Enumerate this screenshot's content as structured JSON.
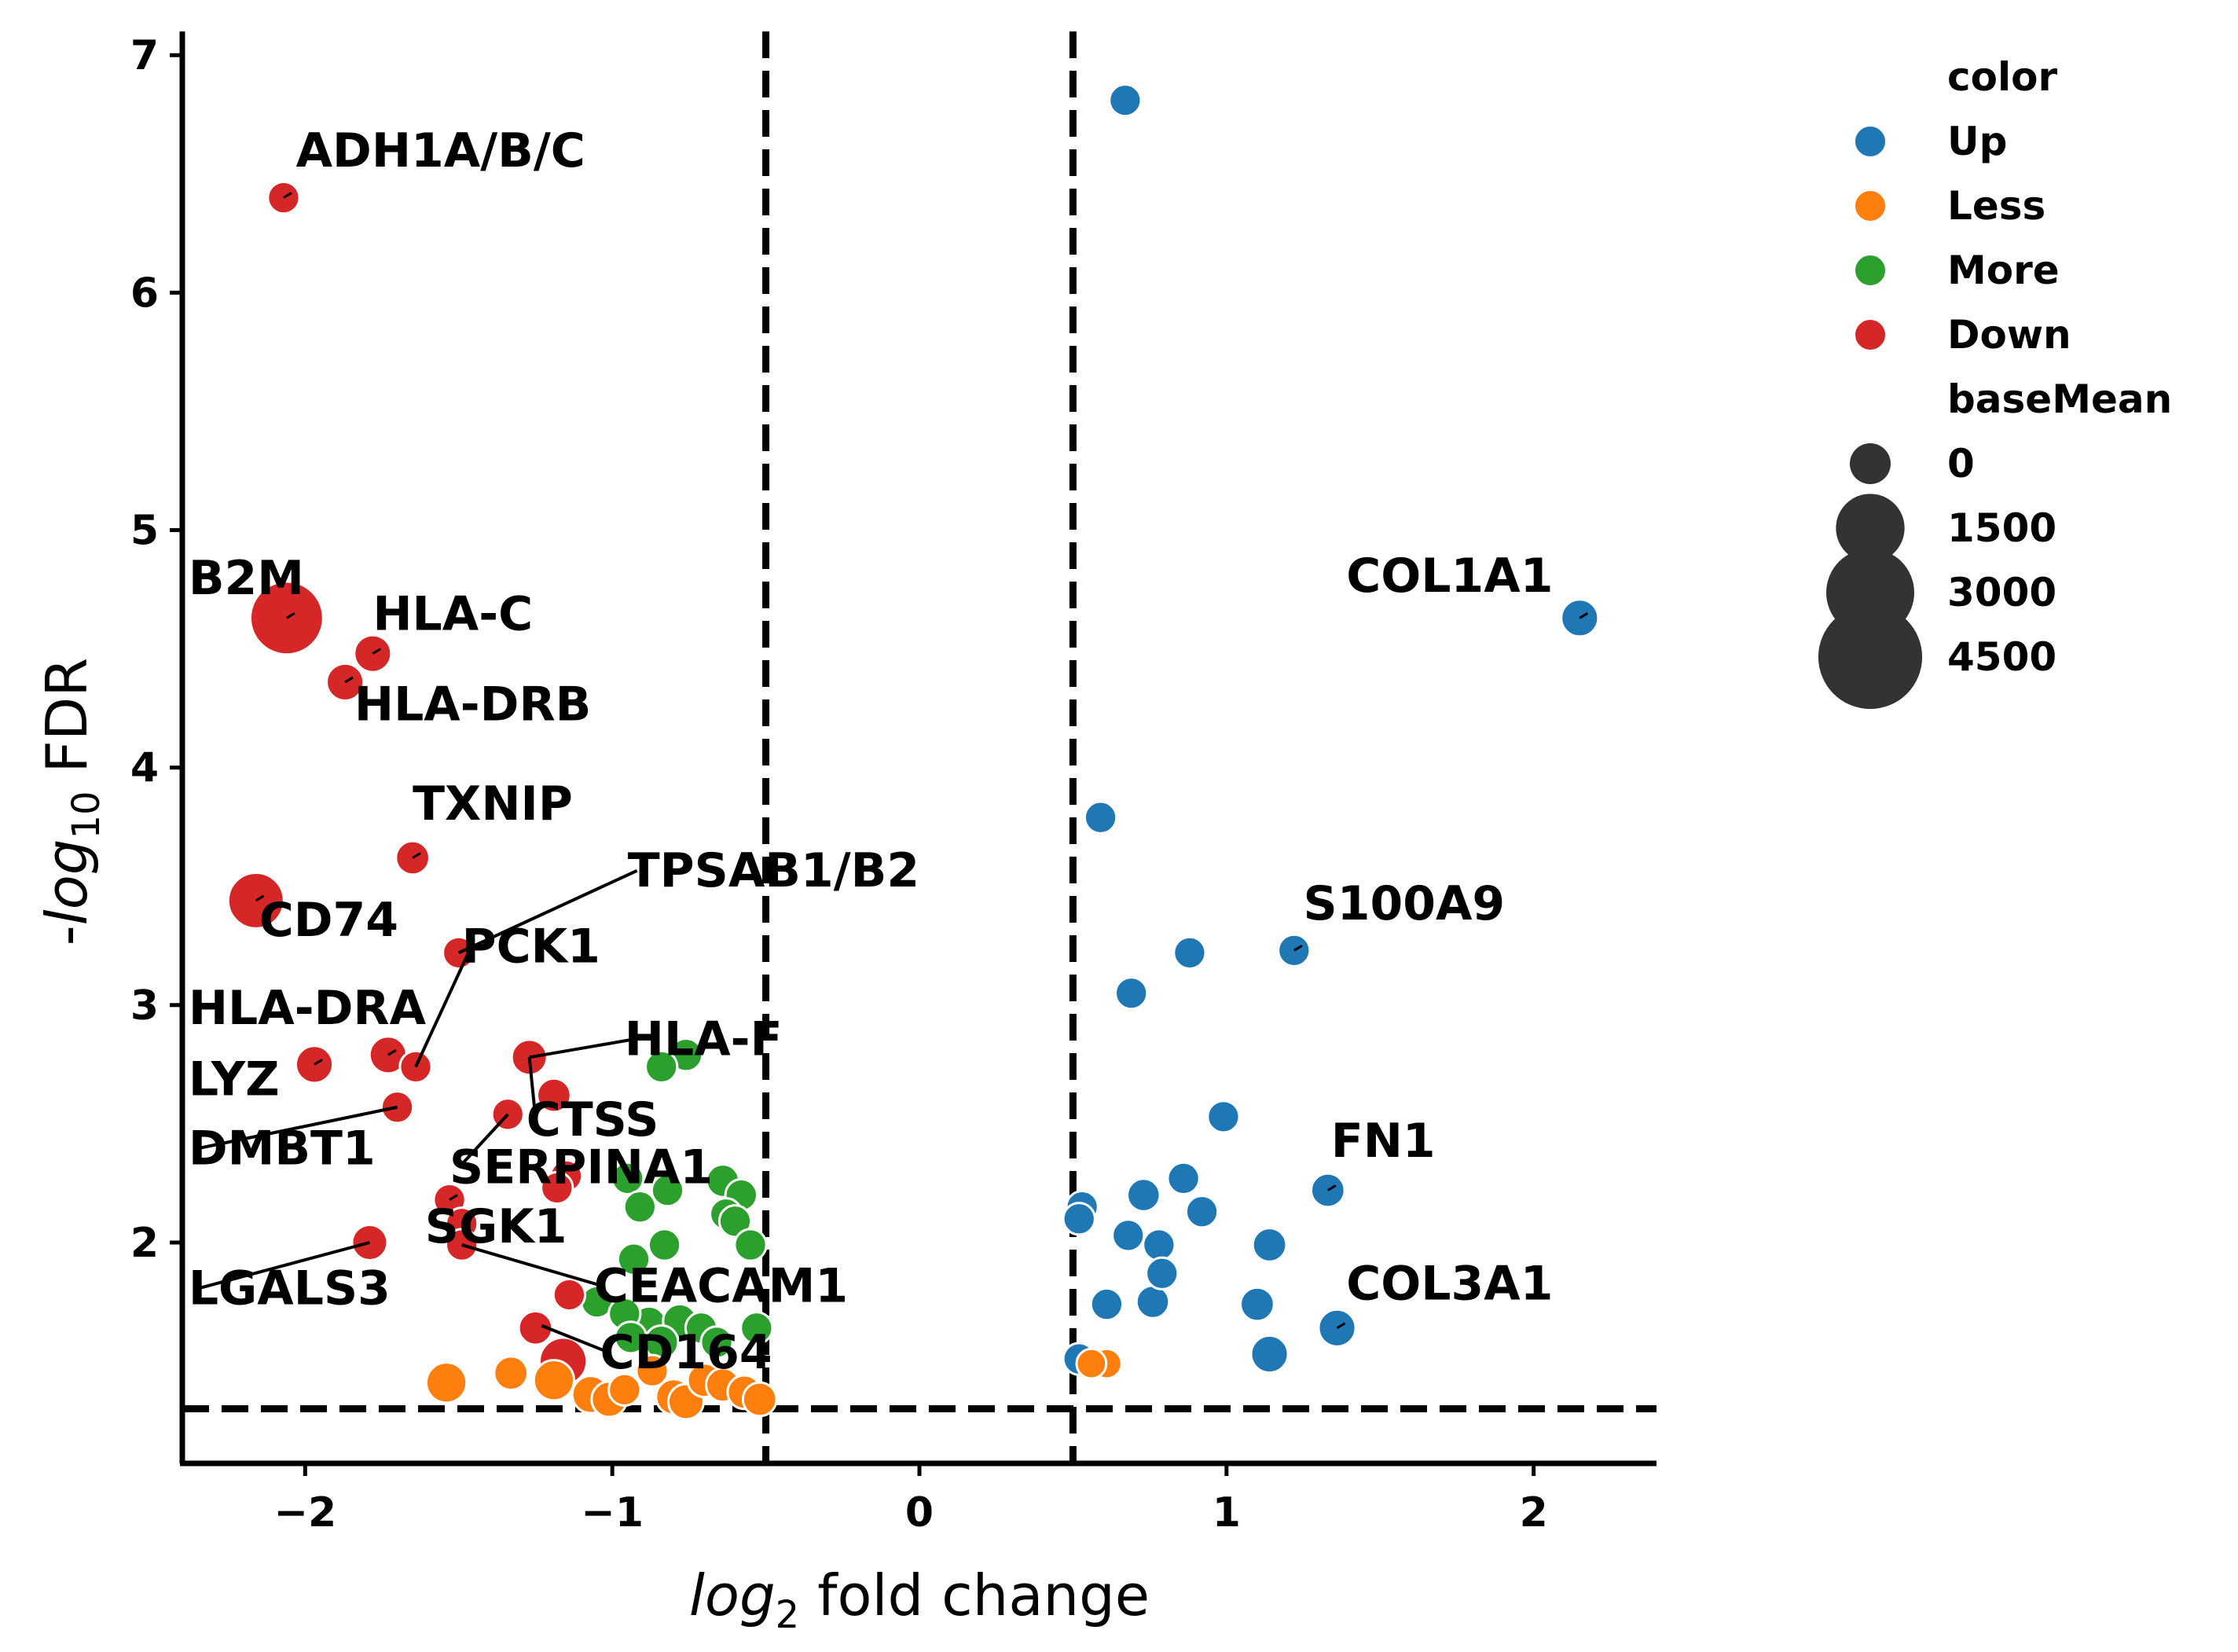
{
  "chart_data": {
    "type": "scatter",
    "title": "",
    "xlabel": {
      "italic": "log",
      "sub": "2",
      "rest": " fold change"
    },
    "ylabel": {
      "prefix": "-",
      "italic": "log",
      "sub": "10",
      "rest": " FDR"
    },
    "xlim": [
      -2.4,
      2.4
    ],
    "ylim": [
      1.07,
      7.1
    ],
    "xticks": [
      -2,
      -1,
      0,
      1,
      2
    ],
    "xtick_labels": [
      "−2",
      "−1",
      "0",
      "1",
      "2"
    ],
    "yticks": [
      2,
      3,
      4,
      5,
      6,
      7
    ],
    "ytick_labels": [
      "2",
      "3",
      "4",
      "5",
      "6",
      "7"
    ],
    "grid": false,
    "thresholds": {
      "vertical": [
        -0.5,
        0.5
      ],
      "horizontal": 1.3
    },
    "colors": {
      "Up": "#1f77b4",
      "Less": "#ff7f0e",
      "More": "#2ca02c",
      "Down": "#d62728"
    },
    "legend": {
      "placement": "outside-right",
      "color_title": "color",
      "color_entries": [
        "Up",
        "Less",
        "More",
        "Down"
      ],
      "size_title": "baseMean",
      "size_entries": [
        {
          "label": "0",
          "value": 0
        },
        {
          "label": "1500",
          "value": 1500
        },
        {
          "label": "3000",
          "value": 3000
        },
        {
          "label": "4500",
          "value": 4500
        }
      ]
    },
    "points": [
      {
        "x": 0.67,
        "y": 6.81,
        "group": "Up",
        "size": 300
      },
      {
        "x": 2.15,
        "y": 4.63,
        "group": "Up",
        "size": 600
      },
      {
        "x": 0.59,
        "y": 3.79,
        "group": "Up",
        "size": 300
      },
      {
        "x": 0.88,
        "y": 3.22,
        "group": "Up",
        "size": 300
      },
      {
        "x": 1.22,
        "y": 3.23,
        "group": "Up",
        "size": 300
      },
      {
        "x": 0.69,
        "y": 3.05,
        "group": "Up",
        "size": 300
      },
      {
        "x": 0.99,
        "y": 2.53,
        "group": "Up",
        "size": 300
      },
      {
        "x": 0.86,
        "y": 2.27,
        "group": "Up",
        "size": 300
      },
      {
        "x": 1.33,
        "y": 2.22,
        "group": "Up",
        "size": 400
      },
      {
        "x": 0.73,
        "y": 2.2,
        "group": "Up",
        "size": 350
      },
      {
        "x": 0.53,
        "y": 2.15,
        "group": "Up",
        "size": 300
      },
      {
        "x": 0.92,
        "y": 2.13,
        "group": "Up",
        "size": 300
      },
      {
        "x": 0.52,
        "y": 2.1,
        "group": "Up",
        "size": 300
      },
      {
        "x": 0.68,
        "y": 2.03,
        "group": "Up",
        "size": 300
      },
      {
        "x": 0.78,
        "y": 1.99,
        "group": "Up",
        "size": 300
      },
      {
        "x": 1.14,
        "y": 1.99,
        "group": "Up",
        "size": 400
      },
      {
        "x": 0.79,
        "y": 1.87,
        "group": "Up",
        "size": 300
      },
      {
        "x": 0.61,
        "y": 1.74,
        "group": "Up",
        "size": 300
      },
      {
        "x": 0.76,
        "y": 1.75,
        "group": "Up",
        "size": 350
      },
      {
        "x": 1.1,
        "y": 1.74,
        "group": "Up",
        "size": 400
      },
      {
        "x": 1.36,
        "y": 1.64,
        "group": "Up",
        "size": 600
      },
      {
        "x": 1.14,
        "y": 1.53,
        "group": "Up",
        "size": 600
      },
      {
        "x": 0.52,
        "y": 1.51,
        "group": "Up",
        "size": 300
      },
      {
        "x": 0.61,
        "y": 1.49,
        "group": "Less",
        "size": 200
      },
      {
        "x": 0.56,
        "y": 1.49,
        "group": "Less",
        "size": 200
      },
      {
        "x": -1.54,
        "y": 1.41,
        "group": "Less",
        "size": 800
      },
      {
        "x": -1.33,
        "y": 1.45,
        "group": "Less",
        "size": 400
      },
      {
        "x": -1.19,
        "y": 1.42,
        "group": "Less",
        "size": 800
      },
      {
        "x": -1.07,
        "y": 1.36,
        "group": "Less",
        "size": 600
      },
      {
        "x": -1.01,
        "y": 1.34,
        "group": "Less",
        "size": 500
      },
      {
        "x": -0.96,
        "y": 1.38,
        "group": "Less",
        "size": 300
      },
      {
        "x": -0.8,
        "y": 1.35,
        "group": "Less",
        "size": 500
      },
      {
        "x": -0.76,
        "y": 1.33,
        "group": "Less",
        "size": 500
      },
      {
        "x": -0.7,
        "y": 1.42,
        "group": "Less",
        "size": 400
      },
      {
        "x": -0.64,
        "y": 1.4,
        "group": "Less",
        "size": 400
      },
      {
        "x": -0.57,
        "y": 1.37,
        "group": "Less",
        "size": 400
      },
      {
        "x": -0.52,
        "y": 1.34,
        "group": "Less",
        "size": 400
      },
      {
        "x": -0.87,
        "y": 1.46,
        "group": "Less",
        "size": 300
      },
      {
        "x": -0.84,
        "y": 2.74,
        "group": "More",
        "size": 300
      },
      {
        "x": -0.76,
        "y": 2.79,
        "group": "More",
        "size": 350
      },
      {
        "x": -0.95,
        "y": 2.27,
        "group": "More",
        "size": 300
      },
      {
        "x": -0.82,
        "y": 2.22,
        "group": "More",
        "size": 300
      },
      {
        "x": -0.64,
        "y": 2.26,
        "group": "More",
        "size": 350
      },
      {
        "x": -0.58,
        "y": 2.2,
        "group": "More",
        "size": 300
      },
      {
        "x": -0.91,
        "y": 2.15,
        "group": "More",
        "size": 300
      },
      {
        "x": -0.63,
        "y": 2.12,
        "group": "More",
        "size": 300
      },
      {
        "x": -0.6,
        "y": 2.09,
        "group": "More",
        "size": 300
      },
      {
        "x": -0.83,
        "y": 1.99,
        "group": "More",
        "size": 300
      },
      {
        "x": -0.55,
        "y": 1.99,
        "group": "More",
        "size": 300
      },
      {
        "x": -0.93,
        "y": 1.93,
        "group": "More",
        "size": 300
      },
      {
        "x": -1.05,
        "y": 1.75,
        "group": "More",
        "size": 300
      },
      {
        "x": -0.96,
        "y": 1.7,
        "group": "More",
        "size": 300
      },
      {
        "x": -0.88,
        "y": 1.66,
        "group": "More",
        "size": 400
      },
      {
        "x": -0.78,
        "y": 1.67,
        "group": "More",
        "size": 400
      },
      {
        "x": -0.71,
        "y": 1.64,
        "group": "More",
        "size": 300
      },
      {
        "x": -0.53,
        "y": 1.64,
        "group": "More",
        "size": 300
      },
      {
        "x": -0.94,
        "y": 1.6,
        "group": "More",
        "size": 300
      },
      {
        "x": -0.84,
        "y": 1.58,
        "group": "More",
        "size": 400
      },
      {
        "x": -0.66,
        "y": 1.58,
        "group": "More",
        "size": 300
      },
      {
        "x": -2.07,
        "y": 6.4,
        "group": "Down",
        "size": 300
      },
      {
        "x": -2.06,
        "y": 4.63,
        "group": "Down",
        "size": 3800
      },
      {
        "x": -1.78,
        "y": 4.48,
        "group": "Down",
        "size": 600
      },
      {
        "x": -1.87,
        "y": 4.36,
        "group": "Down",
        "size": 600
      },
      {
        "x": -1.65,
        "y": 3.62,
        "group": "Down",
        "size": 400
      },
      {
        "x": -2.16,
        "y": 3.44,
        "group": "Down",
        "size": 2000
      },
      {
        "x": -1.5,
        "y": 3.22,
        "group": "Down",
        "size": 300
      },
      {
        "x": -1.97,
        "y": 2.75,
        "group": "Down",
        "size": 600
      },
      {
        "x": -1.73,
        "y": 2.79,
        "group": "Down",
        "size": 600
      },
      {
        "x": -1.64,
        "y": 2.74,
        "group": "Down",
        "size": 300
      },
      {
        "x": -1.27,
        "y": 2.78,
        "group": "Down",
        "size": 500
      },
      {
        "x": -1.19,
        "y": 2.62,
        "group": "Down",
        "size": 400
      },
      {
        "x": -1.7,
        "y": 2.57,
        "group": "Down",
        "size": 300
      },
      {
        "x": -1.34,
        "y": 2.54,
        "group": "Down",
        "size": 300
      },
      {
        "x": -1.15,
        "y": 2.28,
        "group": "Down",
        "size": 300
      },
      {
        "x": -1.18,
        "y": 2.23,
        "group": "Down",
        "size": 300
      },
      {
        "x": -1.53,
        "y": 2.18,
        "group": "Down",
        "size": 300
      },
      {
        "x": -1.49,
        "y": 2.08,
        "group": "Down",
        "size": 300
      },
      {
        "x": -1.79,
        "y": 2.0,
        "group": "Down",
        "size": 500
      },
      {
        "x": -1.49,
        "y": 1.99,
        "group": "Down",
        "size": 300
      },
      {
        "x": -1.14,
        "y": 1.78,
        "group": "Down",
        "size": 300
      },
      {
        "x": -1.25,
        "y": 1.64,
        "group": "Down",
        "size": 400
      },
      {
        "x": -1.16,
        "y": 1.5,
        "group": "Down",
        "size": 1300
      }
    ],
    "labels": [
      {
        "text": "ADH1A/B/C",
        "x": -2.07,
        "y": 6.4,
        "tx": -2.03,
        "ty": 6.53,
        "line": false
      },
      {
        "text": "B2M",
        "x": -2.06,
        "y": 4.63,
        "tx": -2.38,
        "ty": 4.73,
        "line": false
      },
      {
        "text": "HLA-C",
        "x": -1.78,
        "y": 4.48,
        "tx": -1.78,
        "ty": 4.58,
        "line": false
      },
      {
        "text": "HLA-DRB",
        "x": -1.87,
        "y": 4.36,
        "tx": -1.84,
        "ty": 4.2,
        "line": false
      },
      {
        "text": "COL1A1",
        "x": 2.15,
        "y": 4.63,
        "tx": 1.39,
        "ty": 4.74,
        "line": false
      },
      {
        "text": "TXNIP",
        "x": -1.65,
        "y": 3.62,
        "tx": -1.65,
        "ty": 3.78,
        "line": false
      },
      {
        "text": "TPSAB1/B2",
        "x": -1.5,
        "y": 3.22,
        "tx": -0.95,
        "ty": 3.5,
        "line": true
      },
      {
        "text": "CD74",
        "x": -2.16,
        "y": 3.44,
        "tx": -2.15,
        "ty": 3.29,
        "line": false
      },
      {
        "text": "PCK1",
        "x": -1.64,
        "y": 2.74,
        "tx": -1.49,
        "ty": 3.18,
        "line": true
      },
      {
        "text": "S100A9",
        "x": 1.22,
        "y": 3.23,
        "tx": 1.25,
        "ty": 3.36,
        "line": false
      },
      {
        "text": "HLA-DRA",
        "x": -1.73,
        "y": 2.79,
        "tx": -2.38,
        "ty": 2.92,
        "line": false
      },
      {
        "text": "HLA-F",
        "x": -1.27,
        "y": 2.78,
        "tx": -0.96,
        "ty": 2.79,
        "line": true
      },
      {
        "text": "LYZ",
        "x": -1.97,
        "y": 2.75,
        "tx": -2.38,
        "ty": 2.62,
        "line": false
      },
      {
        "text": "CTSS",
        "x": -1.27,
        "y": 2.78,
        "tx": -1.28,
        "ty": 2.45,
        "line": true
      },
      {
        "text": "DMBT1",
        "x": -1.7,
        "y": 2.57,
        "tx": -2.38,
        "ty": 2.33,
        "line": true
      },
      {
        "text": "SERPINA1",
        "x": -1.34,
        "y": 2.54,
        "tx": -1.53,
        "ty": 2.25,
        "line": true
      },
      {
        "text": "FN1",
        "x": 1.33,
        "y": 2.22,
        "tx": 1.34,
        "ty": 2.36,
        "line": false
      },
      {
        "text": "SGK1",
        "x": -1.53,
        "y": 2.18,
        "tx": -1.61,
        "ty": 2.0,
        "line": false
      },
      {
        "text": "LGALS3",
        "x": -1.79,
        "y": 2.0,
        "tx": -2.38,
        "ty": 1.74,
        "line": true
      },
      {
        "text": "CEACAM1",
        "x": -1.49,
        "y": 1.99,
        "tx": -1.06,
        "ty": 1.75,
        "line": true
      },
      {
        "text": "COL3A1",
        "x": 1.36,
        "y": 1.64,
        "tx": 1.39,
        "ty": 1.76,
        "line": false
      },
      {
        "text": "CD164",
        "x": -1.23,
        "y": 1.65,
        "tx": -1.04,
        "ty": 1.47,
        "line": true
      }
    ]
  }
}
